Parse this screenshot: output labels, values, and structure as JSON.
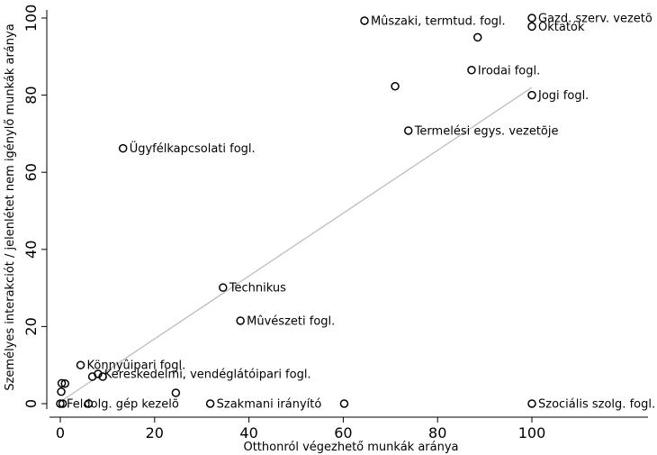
{
  "chart_data": {
    "type": "scatter",
    "xlabel": "Otthonról végezhető munkák aránya",
    "ylabel": "Személyes interakciót / jelenlétet nem igénylő munkák aránya",
    "xlim": [
      0,
      100
    ],
    "ylim": [
      0,
      100
    ],
    "x_ticks": [
      0,
      20,
      40,
      60,
      80,
      100
    ],
    "y_ticks": [
      0,
      20,
      40,
      60,
      80,
      100
    ],
    "grid": false,
    "fit_line": {
      "x": [
        0,
        100
      ],
      "y": [
        0.5,
        82
      ]
    },
    "colors": {
      "points": "#000000",
      "fit_line": "#bdbdbd"
    },
    "points": [
      {
        "x": 64.5,
        "y": 99.3,
        "label": "Mûszaki, termtud. fogl."
      },
      {
        "x": 100,
        "y": 100,
        "label": "Gazd. szerv. vezetõ"
      },
      {
        "x": 100,
        "y": 97.8,
        "label": "Oktatók"
      },
      {
        "x": 88.5,
        "y": 95,
        "label": ""
      },
      {
        "x": 87.2,
        "y": 86.5,
        "label": "Irodai fogl."
      },
      {
        "x": 71,
        "y": 82.3,
        "label": ""
      },
      {
        "x": 100,
        "y": 80,
        "label": "Jogi fogl."
      },
      {
        "x": 73.8,
        "y": 70.8,
        "label": "Termelési egys. vezetõje"
      },
      {
        "x": 13.3,
        "y": 66.2,
        "label": "Ügyfélkapcsolati fogl."
      },
      {
        "x": 34.5,
        "y": 30.1,
        "label": "Technikus"
      },
      {
        "x": 38.2,
        "y": 21.5,
        "label": "Mûvészeti fogl."
      },
      {
        "x": 4.3,
        "y": 10,
        "label": "Könnyûipari fogl."
      },
      {
        "x": 8,
        "y": 7.7,
        "label": "Kereskedelmi, vendéglátóipari fogl."
      },
      {
        "x": 6.8,
        "y": 7,
        "label": ""
      },
      {
        "x": 9,
        "y": 7,
        "label": ""
      },
      {
        "x": 0.3,
        "y": 5.3,
        "label": ""
      },
      {
        "x": 1,
        "y": 5.2,
        "label": ""
      },
      {
        "x": 0.2,
        "y": 3.1,
        "label": ""
      },
      {
        "x": 24.5,
        "y": 2.8,
        "label": ""
      },
      {
        "x": 0,
        "y": 0,
        "label": "Feldolg. gép kezelõ"
      },
      {
        "x": 0.5,
        "y": 0,
        "label": ""
      },
      {
        "x": 6,
        "y": 0,
        "label": ""
      },
      {
        "x": 31.8,
        "y": 0,
        "label": "Szakmani irányító"
      },
      {
        "x": 60.2,
        "y": 0,
        "label": ""
      },
      {
        "x": 100,
        "y": 0,
        "label": "Szociális szolg. fogl."
      }
    ]
  }
}
